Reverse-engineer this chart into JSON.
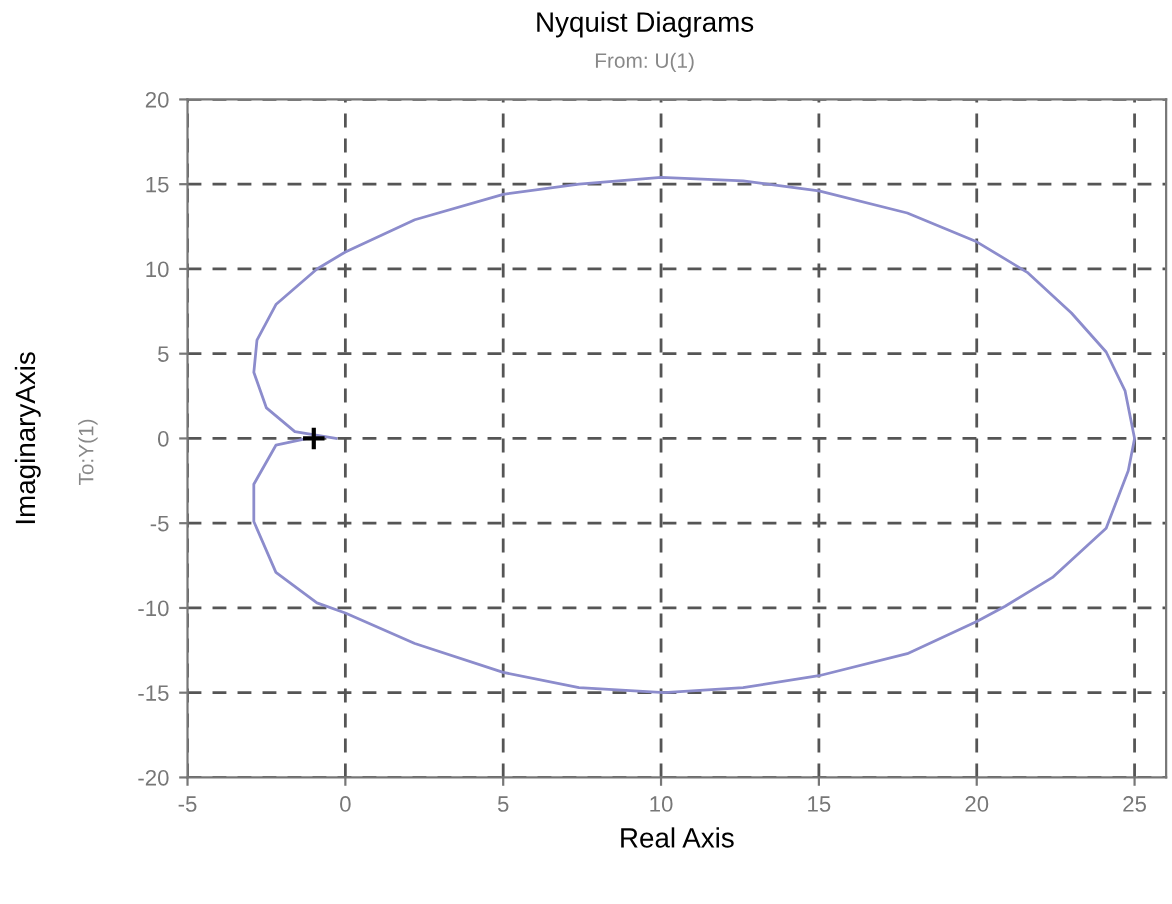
{
  "chart_data": {
    "type": "line",
    "title": "Nyquist Diagrams",
    "subtitle": "From: U(1)",
    "xlabel": "Real Axis",
    "ylabel": "ImaginaryAxis",
    "annotations": [
      "To:Y(1)"
    ],
    "xlim": [
      -5,
      26
    ],
    "ylim": [
      -20,
      20
    ],
    "xticks": [
      -5,
      0,
      5,
      10,
      15,
      20,
      25
    ],
    "yticks": [
      -20,
      -15,
      -10,
      -5,
      0,
      5,
      10,
      15,
      20
    ],
    "grid": true,
    "line_style": "solid",
    "series": [
      {
        "color": "#8c8ccc",
        "x": [
          -0.3,
          -1.6,
          -2.5,
          -2.9,
          -2.8,
          -2.2,
          -0.9,
          0,
          2.2,
          5,
          7.4,
          10,
          12.6,
          15,
          17.8,
          20,
          21.6,
          23.0,
          24.1,
          24.7,
          25,
          24.8,
          24.1,
          22.4,
          20.9,
          20,
          17.8,
          15,
          12.6,
          10.1,
          7.4,
          5,
          2.2,
          0,
          -0.9,
          -2.2,
          -2.9,
          -2.9,
          -2.2,
          -1.2
        ],
        "values": [
          0,
          0.4,
          1.8,
          3.9,
          5.8,
          7.9,
          10.0,
          11.0,
          12.9,
          14.4,
          15.0,
          15.4,
          15.2,
          14.6,
          13.3,
          11.6,
          9.8,
          7.4,
          5.1,
          2.8,
          0,
          -1.9,
          -5.3,
          -8.2,
          -9.9,
          -10.8,
          -12.7,
          -14,
          -14.7,
          -15,
          -14.7,
          -13.8,
          -12.1,
          -10.3,
          -9.7,
          -7.9,
          -4.9,
          -2.7,
          -0.4,
          0
        ]
      },
      {
        "type": "scatter",
        "color": "#000000",
        "marker": "cross",
        "x": [
          -1
        ],
        "values": [
          0
        ]
      }
    ]
  }
}
